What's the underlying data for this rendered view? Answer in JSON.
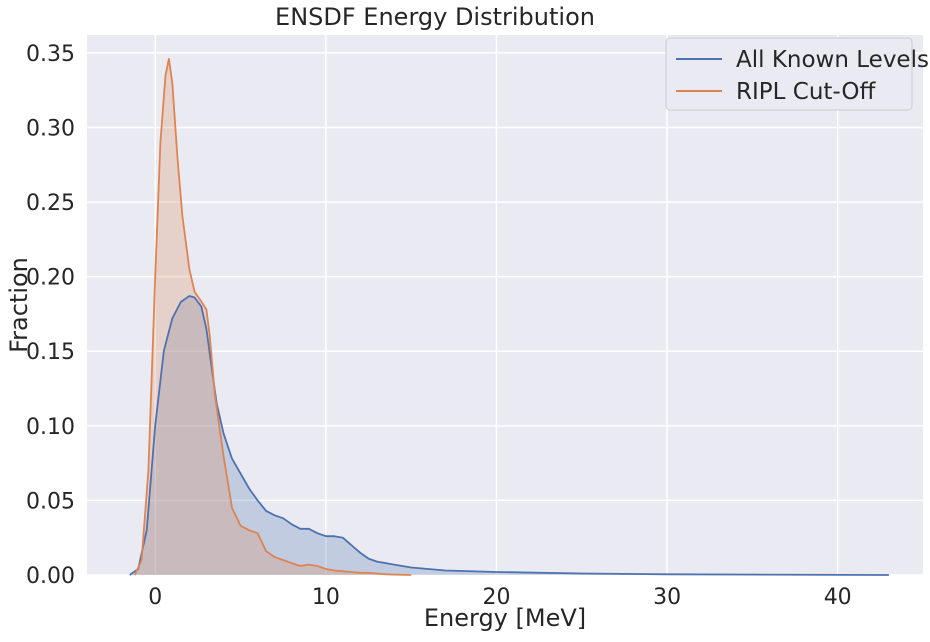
{
  "chart_data": {
    "type": "area",
    "title": "ENSDF Energy Distribution",
    "xlabel": "Energy [MeV]",
    "ylabel": "Fraction",
    "xlim": [
      -4,
      45
    ],
    "ylim": [
      0,
      0.362
    ],
    "x_ticks": [
      0,
      10,
      20,
      30,
      40
    ],
    "x_tick_labels": [
      "0",
      "10",
      "20",
      "30",
      "40"
    ],
    "y_ticks": [
      0,
      0.05,
      0.1,
      0.15,
      0.2,
      0.25,
      0.3,
      0.35
    ],
    "y_tick_labels": [
      "0.00",
      "0.05",
      "0.10",
      "0.15",
      "0.20",
      "0.25",
      "0.30",
      "0.35"
    ],
    "grid": true,
    "legend_position": "top-right",
    "colors": {
      "background": "#eaeaf2",
      "grid": "#ffffff",
      "text": "#262626"
    },
    "series": [
      {
        "name": "All Known Levels",
        "color": "#4c72b0",
        "fill_opacity": 0.25,
        "x": [
          -1.5,
          -1,
          -0.5,
          0,
          0.5,
          1,
          1.5,
          2,
          2.3,
          2.7,
          3,
          3.3,
          3.6,
          4,
          4.5,
          5,
          5.5,
          6,
          6.5,
          7,
          7.5,
          8,
          8.5,
          9,
          9.5,
          10,
          10.5,
          11,
          11.5,
          12,
          12.5,
          13,
          14,
          15,
          17,
          20,
          25,
          30,
          43
        ],
        "y": [
          0,
          0.004,
          0.03,
          0.1,
          0.15,
          0.172,
          0.183,
          0.187,
          0.186,
          0.18,
          0.165,
          0.14,
          0.115,
          0.095,
          0.078,
          0.068,
          0.058,
          0.05,
          0.043,
          0.04,
          0.038,
          0.034,
          0.031,
          0.031,
          0.028,
          0.026,
          0.026,
          0.025,
          0.02,
          0.015,
          0.011,
          0.009,
          0.007,
          0.005,
          0.003,
          0.002,
          0.001,
          0.0005,
          0
        ]
      },
      {
        "name": "RIPL Cut-Off",
        "color": "#dd8452",
        "fill_opacity": 0.25,
        "x": [
          -1.2,
          -0.8,
          -0.4,
          0,
          0.3,
          0.6,
          0.8,
          1,
          1.3,
          1.6,
          2,
          2.3,
          2.6,
          3,
          3.2,
          3.5,
          4,
          4.5,
          5,
          5.5,
          6,
          6.5,
          7,
          7.5,
          8,
          8.5,
          9,
          9.5,
          10,
          10.5,
          11,
          11.5,
          12,
          12.5,
          13,
          13.5,
          14,
          15
        ],
        "y": [
          0,
          0.01,
          0.07,
          0.2,
          0.29,
          0.335,
          0.346,
          0.33,
          0.28,
          0.24,
          0.205,
          0.19,
          0.185,
          0.178,
          0.16,
          0.12,
          0.08,
          0.045,
          0.033,
          0.03,
          0.028,
          0.016,
          0.012,
          0.01,
          0.008,
          0.006,
          0.007,
          0.006,
          0.004,
          0.003,
          0.0025,
          0.002,
          0.0015,
          0.0015,
          0.001,
          0.0005,
          0.0003,
          0
        ]
      }
    ]
  }
}
